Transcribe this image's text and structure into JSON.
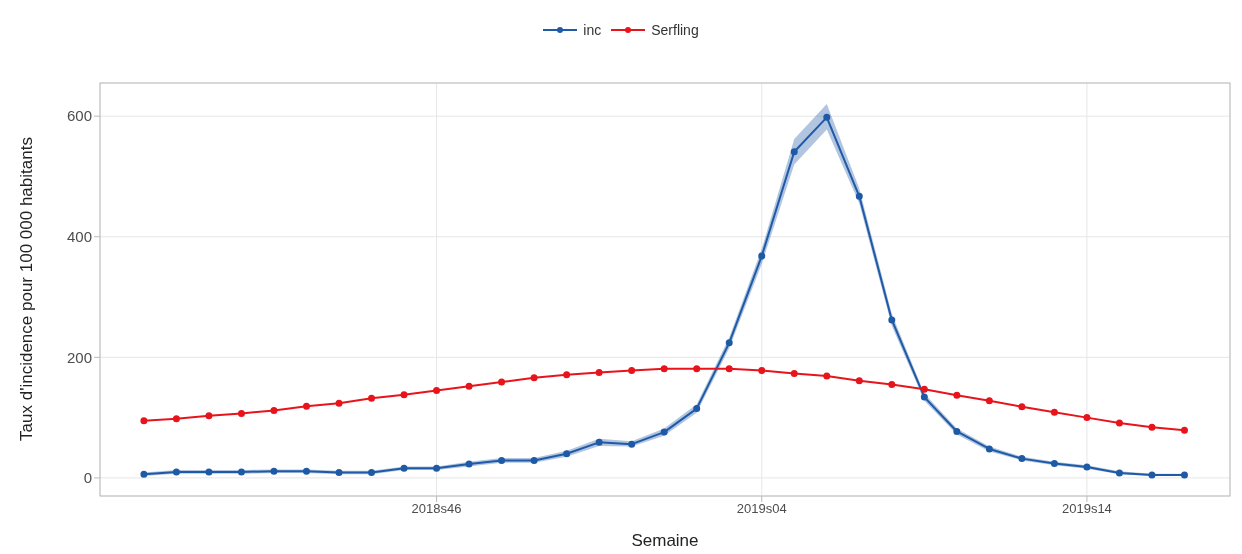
{
  "chart_data": {
    "type": "line",
    "xlabel": "Semaine",
    "ylabel": "Taux d'incidence pour 100 000 habitants",
    "categories": [
      null,
      null,
      null,
      null,
      null,
      null,
      null,
      null,
      null,
      "2018s46",
      null,
      null,
      null,
      null,
      null,
      null,
      null,
      null,
      null,
      "2019s04",
      null,
      null,
      null,
      null,
      null,
      null,
      null,
      null,
      null,
      "2019s14",
      null,
      null,
      null
    ],
    "series": [
      {
        "name": "inc",
        "color": "#1f5aa6",
        "values": [
          6,
          10,
          10,
          10,
          11,
          11,
          9,
          9,
          16,
          16,
          23,
          29,
          29,
          40,
          59,
          56,
          76,
          115,
          224,
          368,
          541,
          598,
          467,
          262,
          134,
          77,
          48,
          32,
          24,
          18,
          8,
          5,
          5
        ],
        "lower": [
          3,
          7,
          7,
          7,
          8,
          8,
          6,
          6,
          13,
          13,
          19,
          25,
          25,
          35,
          53,
          52,
          70,
          108,
          215,
          355,
          520,
          578,
          455,
          252,
          128,
          72,
          44,
          29,
          21,
          15,
          6,
          3,
          3
        ],
        "upper": [
          9,
          13,
          13,
          13,
          14,
          14,
          12,
          12,
          19,
          19,
          27,
          33,
          33,
          45,
          65,
          61,
          82,
          122,
          233,
          380,
          562,
          620,
          480,
          272,
          140,
          82,
          52,
          35,
          27,
          21,
          11,
          7,
          7
        ]
      },
      {
        "name": "Serfling",
        "color": "#e8141c",
        "values": [
          95,
          98,
          103,
          107,
          112,
          119,
          124,
          132,
          138,
          145,
          152,
          159,
          166,
          171,
          175,
          178,
          181,
          181,
          181,
          178,
          173,
          169,
          161,
          155,
          147,
          137,
          128,
          118,
          109,
          100,
          91,
          84,
          79
        ]
      }
    ],
    "ylim": [
      -30,
      655
    ],
    "yticks": [
      0,
      200,
      400,
      600
    ],
    "grid": true,
    "legend": "top",
    "marker": "circle",
    "line_style": "solid"
  }
}
